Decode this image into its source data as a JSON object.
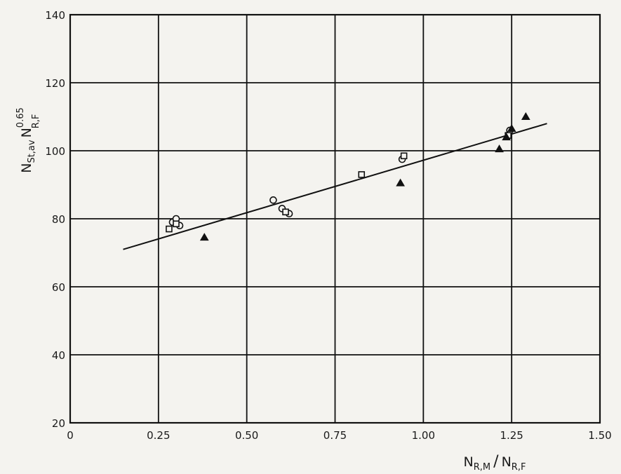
{
  "chart_data": {
    "type": "scatter",
    "title": "",
    "xlabel": {
      "main": "N",
      "sub1": "R,M",
      "slash": "/",
      "main2": "N",
      "sub2": "R,F"
    },
    "ylabel": {
      "main": "N",
      "sub": "St,av",
      "main2": "N",
      "sup": "0.65",
      "sub2": "R,F"
    },
    "xlim": [
      0,
      1.5
    ],
    "ylim": [
      20,
      140
    ],
    "x_ticks": [
      {
        "value": 0,
        "label": "0"
      },
      {
        "value": 0.25,
        "label": "0.25"
      },
      {
        "value": 0.5,
        "label": "0.50"
      },
      {
        "value": 0.75,
        "label": "0.75"
      },
      {
        "value": 1.0,
        "label": "1.00"
      },
      {
        "value": 1.25,
        "label": "1.25"
      },
      {
        "value": 1.5,
        "label": "1.50"
      }
    ],
    "y_ticks": [
      {
        "value": 20,
        "label": "20"
      },
      {
        "value": 40,
        "label": "40"
      },
      {
        "value": 60,
        "label": "60"
      },
      {
        "value": 80,
        "label": "80"
      },
      {
        "value": 100,
        "label": "100"
      },
      {
        "value": 120,
        "label": "120"
      },
      {
        "value": 140,
        "label": "140"
      }
    ],
    "grid": true,
    "series": [
      {
        "marker": "circle",
        "points": [
          {
            "x": 0.29,
            "y": 79
          },
          {
            "x": 0.3,
            "y": 80
          },
          {
            "x": 0.31,
            "y": 78
          },
          {
            "x": 0.575,
            "y": 85.5
          },
          {
            "x": 0.6,
            "y": 83
          },
          {
            "x": 0.62,
            "y": 81.5
          },
          {
            "x": 0.94,
            "y": 97.5
          },
          {
            "x": 1.245,
            "y": 106
          }
        ]
      },
      {
        "marker": "square",
        "points": [
          {
            "x": 0.28,
            "y": 77
          },
          {
            "x": 0.3,
            "y": 78.5
          },
          {
            "x": 0.61,
            "y": 82
          },
          {
            "x": 0.825,
            "y": 93
          },
          {
            "x": 0.945,
            "y": 98.5
          },
          {
            "x": 1.24,
            "y": 104.5
          }
        ]
      },
      {
        "marker": "triangle",
        "points": [
          {
            "x": 0.38,
            "y": 74.5
          },
          {
            "x": 0.935,
            "y": 90.5
          },
          {
            "x": 1.215,
            "y": 100.5
          },
          {
            "x": 1.235,
            "y": 104
          },
          {
            "x": 1.25,
            "y": 106.5
          },
          {
            "x": 1.29,
            "y": 110
          }
        ]
      }
    ],
    "fit_line": [
      {
        "x": 0.15,
        "y": 71
      },
      {
        "x": 1.35,
        "y": 108
      }
    ]
  }
}
